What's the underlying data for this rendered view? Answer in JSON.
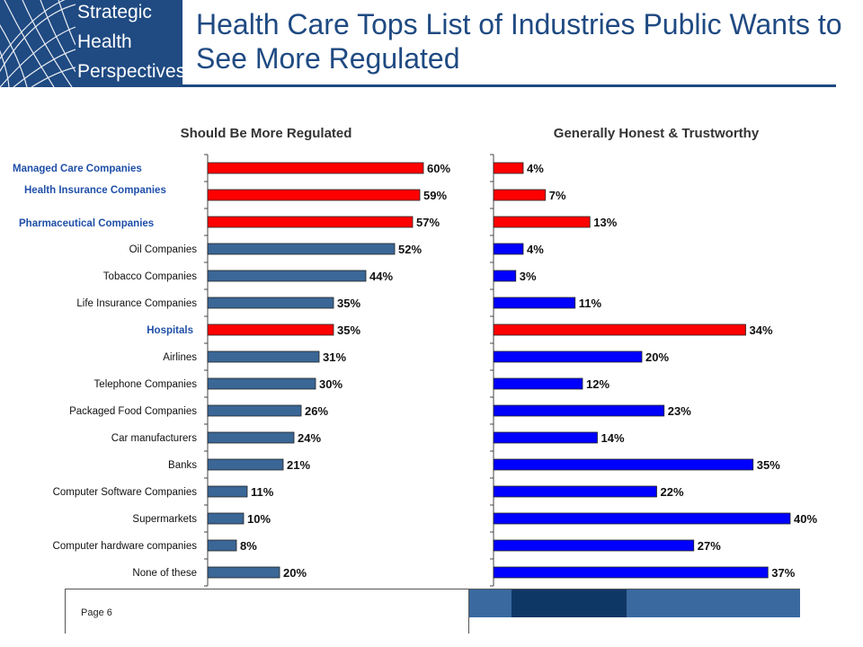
{
  "logo": {
    "lines": [
      "Strategic",
      "Health",
      "Perspectives"
    ],
    "icon": "globe-icon",
    "color": "#1f4a82"
  },
  "title": "Health Care Tops List of Industries Public Wants to See More Regulated",
  "footer": {
    "page": "Page 6"
  },
  "colors": {
    "highlight_bar": "#ff0000",
    "left_bar": "#3a6796",
    "right_bar": "#0000ff",
    "highlight_label": "#1f4fa8"
  },
  "chart_data": [
    {
      "type": "bar",
      "orientation": "horizontal",
      "title": "Should Be More Regulated",
      "categories": [
        "Managed Care Companies",
        "Health Insurance Companies",
        "Pharmaceutical Companies",
        "Oil Companies",
        "Tobacco Companies",
        "Life Insurance Companies",
        "Hospitals",
        "Airlines",
        "Telephone Companies",
        "Packaged Food Companies",
        "Car manufacturers",
        "Banks",
        "Computer Software Companies",
        "Supermarkets",
        "Computer hardware companies",
        "None of these"
      ],
      "values": [
        60,
        59,
        57,
        52,
        44,
        35,
        35,
        31,
        30,
        26,
        24,
        21,
        11,
        10,
        8,
        20
      ],
      "labels": [
        "60%",
        "59%",
        "57%",
        "52%",
        "44%",
        "35%",
        "35%",
        "31%",
        "30%",
        "26%",
        "24%",
        "21%",
        "11%",
        "10%",
        "8%",
        "20%"
      ],
      "highlighted": [
        true,
        true,
        true,
        false,
        false,
        false,
        true,
        false,
        false,
        false,
        false,
        false,
        false,
        false,
        false,
        false
      ],
      "xlim": [
        0,
        100
      ],
      "grid": false
    },
    {
      "type": "bar",
      "orientation": "horizontal",
      "title": "Generally Honest & Trustworthy",
      "values": [
        4,
        7,
        13,
        4,
        3,
        11,
        34,
        20,
        12,
        23,
        14,
        35,
        22,
        40,
        27,
        37
      ],
      "labels": [
        "4%",
        "7%",
        "13%",
        "4%",
        "3%",
        "11%",
        "34%",
        "20%",
        "12%",
        "23%",
        "14%",
        "35%",
        "22%",
        "40%",
        "27%",
        "37%"
      ],
      "highlighted": [
        true,
        true,
        true,
        false,
        false,
        false,
        true,
        false,
        false,
        false,
        false,
        false,
        false,
        false,
        false,
        false
      ],
      "xlim": [
        0,
        45
      ],
      "grid": false
    }
  ]
}
